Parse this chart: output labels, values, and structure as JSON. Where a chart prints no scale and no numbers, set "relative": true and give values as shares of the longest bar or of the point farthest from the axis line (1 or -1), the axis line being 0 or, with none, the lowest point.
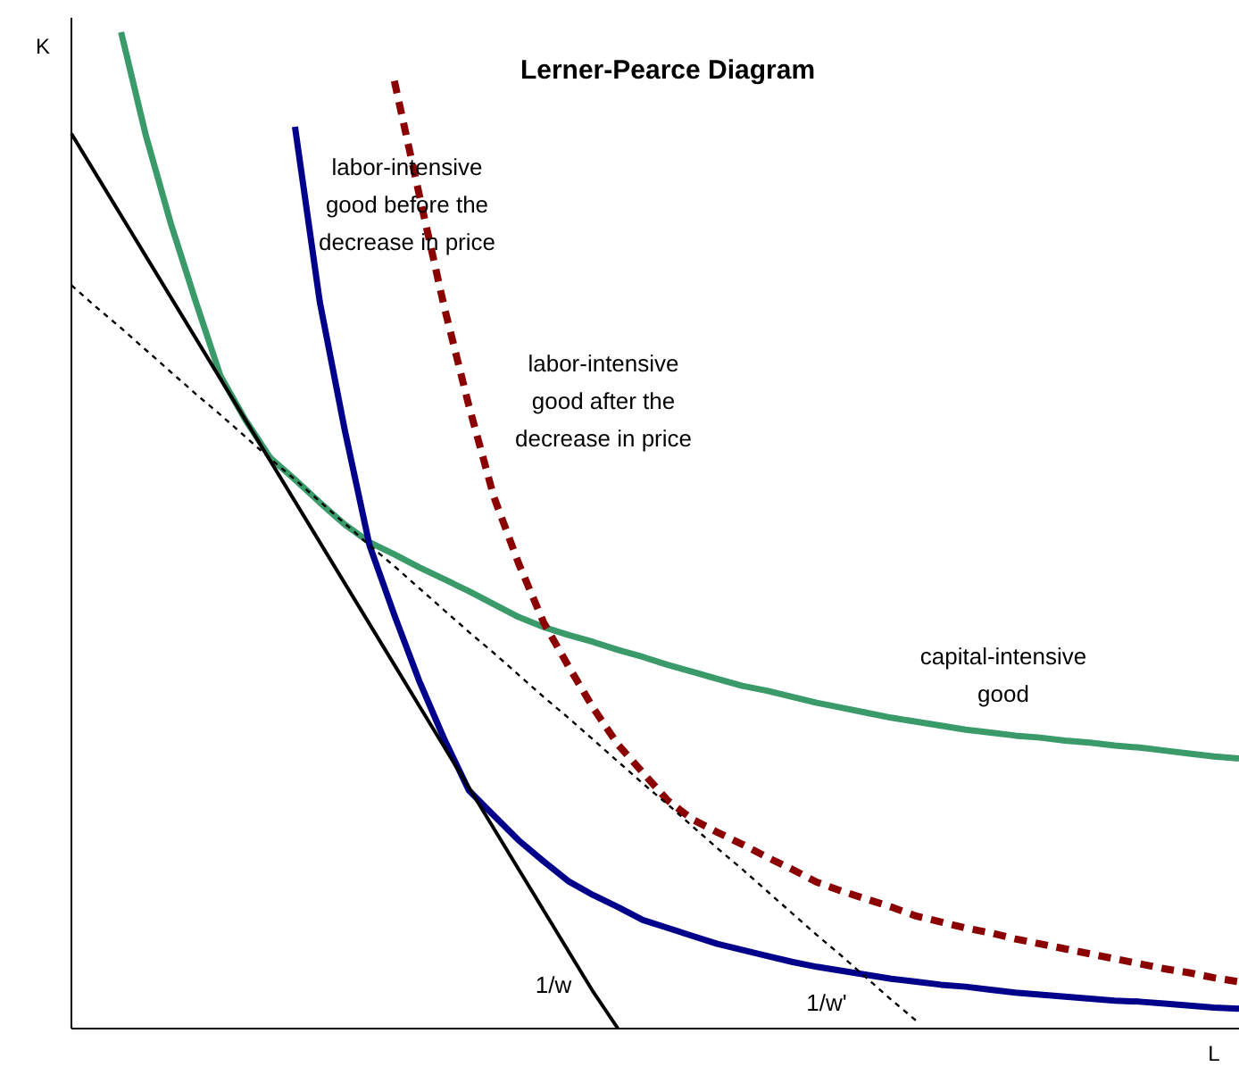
{
  "chart_data": {
    "type": "line",
    "title": "Lerner-Pearce Diagram",
    "xlabel": "L",
    "ylabel": "K",
    "relative": true,
    "marker": "none",
    "categories": [
      null,
      null,
      null,
      null,
      null,
      null,
      null,
      null,
      null,
      null,
      null,
      null,
      null,
      null,
      null,
      null,
      null,
      null,
      null,
      null,
      null,
      null,
      null,
      null,
      null,
      null,
      null,
      null,
      null,
      null,
      null,
      null,
      null,
      null,
      null,
      null,
      null,
      null,
      null,
      null,
      null,
      null,
      null,
      null,
      null,
      null,
      null,
      null
    ],
    "series": [
      {
        "name": "capital-intensive good",
        "color": "#3a9a6a",
        "line_style": "solid",
        "values": [
          null,
          null,
          1,
          0.896,
          0.808,
          0.73,
          0.655,
          0.611,
          0.573,
          0.551,
          0.528,
          0.506,
          0.488,
          0.476,
          0.463,
          0.451,
          0.439,
          0.426,
          0.413,
          0.403,
          0.395,
          0.388,
          0.38,
          0.373,
          0.365,
          0.358,
          0.351,
          0.344,
          0.339,
          0.333,
          0.327,
          0.322,
          0.317,
          0.312,
          0.308,
          0.304,
          0.3,
          0.297,
          0.294,
          0.292,
          0.289,
          0.287,
          0.284,
          0.282,
          0.279,
          0.276,
          0.273,
          0.271
        ]
      },
      {
        "name": "labor-intensive good before the decrease in price",
        "color": "#00008b",
        "line_style": "solid",
        "values": [
          null,
          null,
          null,
          null,
          null,
          null,
          null,
          null,
          null,
          0.905,
          0.729,
          0.601,
          0.485,
          0.415,
          0.349,
          0.291,
          0.239,
          0.214,
          0.189,
          0.168,
          0.148,
          0.134,
          0.122,
          0.109,
          0.101,
          0.093,
          0.085,
          0.079,
          0.073,
          0.067,
          0.062,
          0.058,
          0.054,
          0.05,
          0.047,
          0.044,
          0.042,
          0.039,
          0.036,
          0.034,
          0.032,
          0.03,
          0.028,
          0.027,
          0.025,
          0.023,
          0.021,
          0.02
        ]
      },
      {
        "name": "labor-intensive good after the decrease in price",
        "color": "#8b0000",
        "line_style": "dashed",
        "values": [
          null,
          null,
          null,
          null,
          null,
          null,
          null,
          null,
          null,
          null,
          null,
          null,
          null,
          0.951,
          0.837,
          0.725,
          0.625,
          0.534,
          0.467,
          0.408,
          0.364,
          0.322,
          0.285,
          0.257,
          0.229,
          0.21,
          0.197,
          0.185,
          0.172,
          0.16,
          0.147,
          0.138,
          0.13,
          0.122,
          0.113,
          0.107,
          0.101,
          0.096,
          0.09,
          0.085,
          0.08,
          0.075,
          0.07,
          0.065,
          0.06,
          0.056,
          0.051,
          0.047
        ]
      },
      {
        "name": "1/w",
        "color": "#000000",
        "line_style": "solid",
        "values": [
          0.898,
          0.857,
          0.816,
          0.775,
          0.734,
          0.693,
          0.652,
          0.611,
          0.57,
          0.529,
          0.488,
          0.447,
          0.406,
          0.365,
          0.324,
          0.283,
          0.242,
          0.201,
          0.16,
          0.119,
          0.078,
          0.037,
          0,
          null,
          null,
          null,
          null,
          null,
          null,
          null,
          null,
          null,
          null,
          null,
          null,
          null,
          null,
          null,
          null,
          null,
          null,
          null,
          null,
          null,
          null,
          null,
          null,
          null
        ]
      },
      {
        "name": "1/w'",
        "color": "#000000",
        "line_style": "dotted",
        "values": [
          0.746,
          0.724,
          0.703,
          0.681,
          0.659,
          0.637,
          0.616,
          0.594,
          0.572,
          0.551,
          0.529,
          0.507,
          0.485,
          0.464,
          0.442,
          0.42,
          0.398,
          0.377,
          0.355,
          0.333,
          0.312,
          0.29,
          0.268,
          0.246,
          0.225,
          0.203,
          0.181,
          0.16,
          0.138,
          0.116,
          0.094,
          0.073,
          0.051,
          0.029,
          0.008,
          null,
          null,
          null,
          null,
          null,
          null,
          null,
          null,
          null,
          null,
          null,
          null,
          null
        ]
      }
    ]
  }
}
